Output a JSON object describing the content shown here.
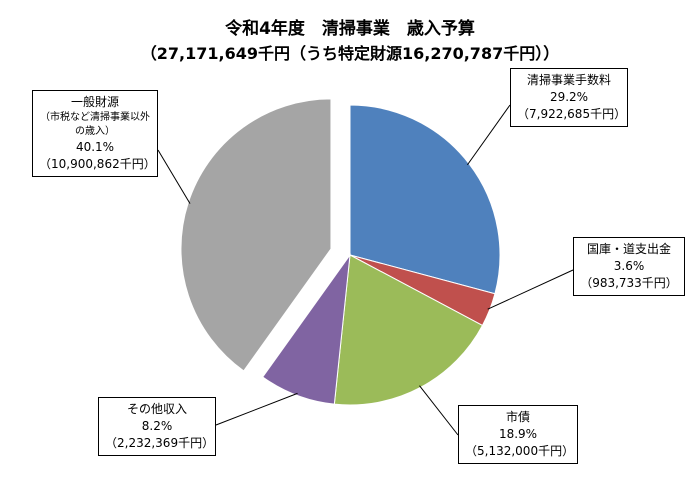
{
  "title": "令和4年度　清掃事業　歳入予算",
  "subtitle": "（27,171,649千円（うち特定財源16,270,787千円））",
  "chart_data": {
    "type": "pie",
    "title": "令和4年度　清掃事業　歳入予算",
    "subtitle": "（27,171,649千円（うち特定財源16,270,787千円））",
    "slices": [
      {
        "label": "清掃事業手数料",
        "percent_label": "29.2%",
        "amount_label": "（7,922,685千円）",
        "value": 7922685,
        "color": "#4F81BD"
      },
      {
        "label": "国庫・道支出金",
        "percent_label": "3.6%",
        "amount_label": "（983,733千円）",
        "value": 983733,
        "color": "#C0504D"
      },
      {
        "label": "市債",
        "percent_label": "18.9%",
        "amount_label": "（5,132,000千円）",
        "value": 5132000,
        "color": "#9BBB59"
      },
      {
        "label": "その他収入",
        "percent_label": "8.2%",
        "amount_label": "（2,232,369千円）",
        "value": 2232369,
        "color": "#8064A2"
      },
      {
        "label": "一般財源",
        "sublabel": "（市税など清掃事業以外の歳入）",
        "percent_label": "40.1%",
        "amount_label": "（10,900,862千円）",
        "value": 10900862,
        "color": "#A5A5A5",
        "exploded": true
      }
    ]
  }
}
